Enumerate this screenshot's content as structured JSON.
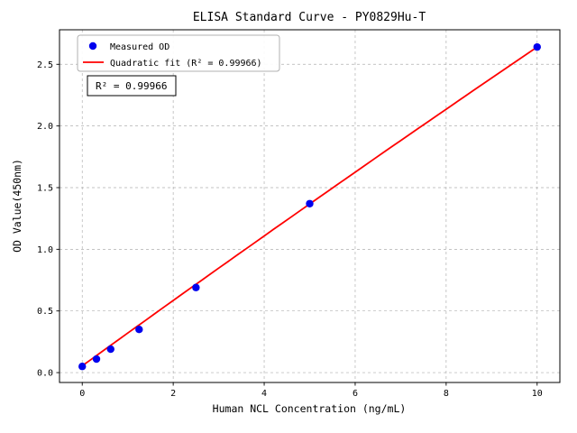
{
  "chart_data": {
    "type": "scatter",
    "title": "ELISA Standard Curve - PY0829Hu-T",
    "xlabel": "Human NCL Concentration (ng/mL)",
    "ylabel": "OD Value(450nm)",
    "xlim": [
      -0.5,
      10.5
    ],
    "ylim": [
      -0.08,
      2.78
    ],
    "xticks": [
      0,
      2,
      4,
      6,
      8,
      10
    ],
    "yticks": [
      0.0,
      0.5,
      1.0,
      1.5,
      2.0,
      2.5
    ],
    "grid": true,
    "grid_style": "dashed",
    "grid_color": "#b0b0b0",
    "frame_color": "#000000",
    "legend_position": "upper-left",
    "series": [
      {
        "name": "Measured OD",
        "type": "scatter",
        "marker": "circle",
        "color": "#0000ee",
        "points": [
          {
            "x": 0,
            "y": 0.05
          },
          {
            "x": 0.3125,
            "y": 0.11
          },
          {
            "x": 0.625,
            "y": 0.19
          },
          {
            "x": 1.25,
            "y": 0.35
          },
          {
            "x": 2.5,
            "y": 0.69
          },
          {
            "x": 5,
            "y": 1.37
          },
          {
            "x": 10,
            "y": 2.64
          }
        ]
      },
      {
        "name": "Quadratic fit (R² = 0.99966)",
        "type": "line",
        "color": "#ff0000",
        "fit_coeffs": {
          "c0": 0.055,
          "c1": 0.2665,
          "c2": -0.0008
        },
        "x_range": [
          0,
          10
        ]
      }
    ],
    "annotation": "R² = 0.99966",
    "r_squared": "0.99966"
  }
}
